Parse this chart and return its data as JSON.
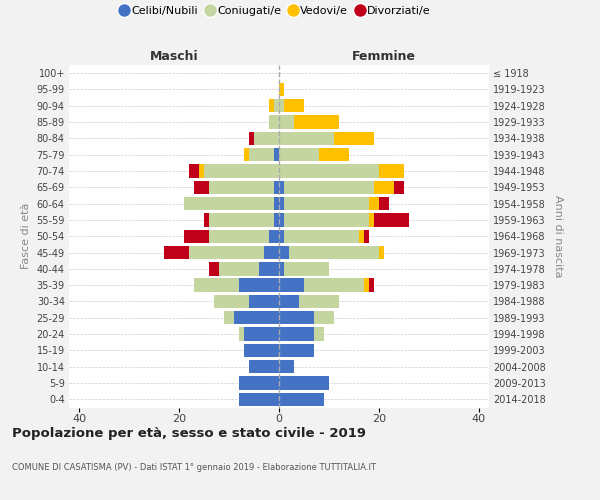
{
  "age_groups": [
    "0-4",
    "5-9",
    "10-14",
    "15-19",
    "20-24",
    "25-29",
    "30-34",
    "35-39",
    "40-44",
    "45-49",
    "50-54",
    "55-59",
    "60-64",
    "65-69",
    "70-74",
    "75-79",
    "80-84",
    "85-89",
    "90-94",
    "95-99",
    "100+"
  ],
  "birth_years": [
    "2014-2018",
    "2009-2013",
    "2004-2008",
    "1999-2003",
    "1994-1998",
    "1989-1993",
    "1984-1988",
    "1979-1983",
    "1974-1978",
    "1969-1973",
    "1964-1968",
    "1959-1963",
    "1954-1958",
    "1949-1953",
    "1944-1948",
    "1939-1943",
    "1934-1938",
    "1929-1933",
    "1924-1928",
    "1919-1923",
    "≤ 1918"
  ],
  "males": {
    "celibi": [
      8,
      8,
      6,
      7,
      7,
      9,
      6,
      8,
      4,
      3,
      2,
      1,
      1,
      1,
      0,
      1,
      0,
      0,
      0,
      0,
      0
    ],
    "coniugati": [
      0,
      0,
      0,
      0,
      1,
      2,
      7,
      9,
      8,
      15,
      12,
      13,
      18,
      13,
      15,
      5,
      5,
      2,
      1,
      0,
      0
    ],
    "vedovi": [
      0,
      0,
      0,
      0,
      0,
      0,
      0,
      0,
      0,
      0,
      0,
      0,
      0,
      0,
      1,
      1,
      0,
      0,
      1,
      0,
      0
    ],
    "divorziati": [
      0,
      0,
      0,
      0,
      0,
      0,
      0,
      0,
      2,
      5,
      5,
      1,
      0,
      3,
      2,
      0,
      1,
      0,
      0,
      0,
      0
    ]
  },
  "females": {
    "nubili": [
      9,
      10,
      3,
      7,
      7,
      7,
      4,
      5,
      1,
      2,
      1,
      1,
      1,
      1,
      0,
      0,
      0,
      0,
      0,
      0,
      0
    ],
    "coniugate": [
      0,
      0,
      0,
      0,
      2,
      4,
      8,
      12,
      9,
      18,
      15,
      17,
      17,
      18,
      20,
      8,
      11,
      3,
      1,
      0,
      0
    ],
    "vedove": [
      0,
      0,
      0,
      0,
      0,
      0,
      0,
      1,
      0,
      1,
      1,
      1,
      2,
      4,
      5,
      6,
      8,
      9,
      4,
      1,
      0
    ],
    "divorziate": [
      0,
      0,
      0,
      0,
      0,
      0,
      0,
      1,
      0,
      0,
      1,
      7,
      2,
      2,
      0,
      0,
      0,
      0,
      0,
      0,
      0
    ]
  },
  "colors": {
    "celibi": "#4472c4",
    "coniugati": "#c5d5a0",
    "vedovi": "#ffc000",
    "divorziati": "#c0001a"
  },
  "xlim": [
    -42,
    42
  ],
  "xticks": [
    -40,
    -20,
    0,
    20,
    40
  ],
  "xticklabels": [
    "40",
    "20",
    "0",
    "20",
    "40"
  ],
  "title": "Popolazione per età, sesso e stato civile - 2019",
  "subtitle": "COMUNE DI CASATISMA (PV) - Dati ISTAT 1° gennaio 2019 - Elaborazione TUTTITALIA.IT",
  "ylabel_left": "Fasce di età",
  "ylabel_right": "Anni di nascita",
  "header_left": "Maschi",
  "header_right": "Femmine",
  "legend_labels": [
    "Celibi/Nubili",
    "Coniugati/e",
    "Vedovi/e",
    "Divorziati/e"
  ],
  "bg_color": "#f2f2f2",
  "plot_bg_color": "#ffffff"
}
